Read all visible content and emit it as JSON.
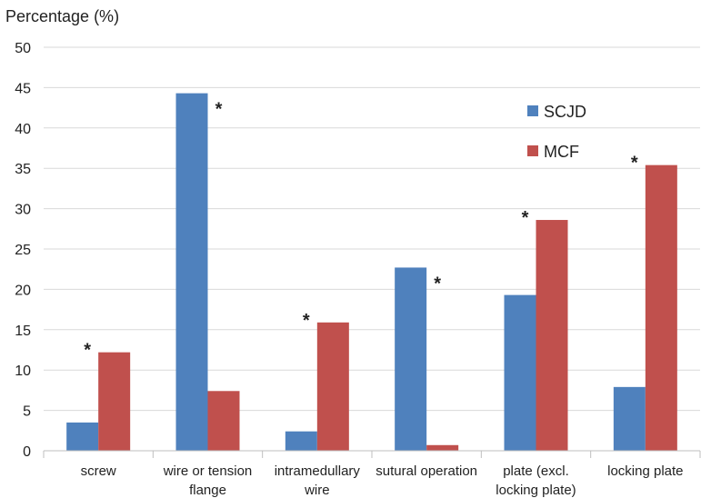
{
  "chart_data": {
    "type": "bar",
    "ylabel": "Percentage (%)",
    "ylim": [
      0,
      50
    ],
    "yticks": [
      0,
      5,
      10,
      15,
      20,
      25,
      30,
      35,
      40,
      45,
      50
    ],
    "grid": true,
    "legend_position": "top-right",
    "categories": [
      [
        "screw"
      ],
      [
        "wire or tension",
        "flange"
      ],
      [
        "intramedullary",
        "wire"
      ],
      [
        "sutural operation"
      ],
      [
        "plate (excl.",
        "locking plate)"
      ],
      [
        "locking plate"
      ]
    ],
    "series": [
      {
        "name": "SCJD",
        "color": "#4F81BD",
        "values": [
          3.5,
          44.3,
          2.4,
          22.7,
          19.3,
          7.9
        ]
      },
      {
        "name": "MCF",
        "color": "#C0504D",
        "values": [
          12.2,
          7.4,
          15.9,
          0.7,
          28.6,
          35.4
        ]
      }
    ],
    "annotations": [
      {
        "category_index": 0,
        "series_index": 1,
        "text": "*"
      },
      {
        "category_index": 1,
        "series_index": 0,
        "text": "*"
      },
      {
        "category_index": 2,
        "series_index": 1,
        "text": "*"
      },
      {
        "category_index": 3,
        "series_index": 0,
        "text": "*"
      },
      {
        "category_index": 4,
        "series_index": 1,
        "text": "*"
      },
      {
        "category_index": 5,
        "series_index": 1,
        "text": "*"
      }
    ]
  }
}
